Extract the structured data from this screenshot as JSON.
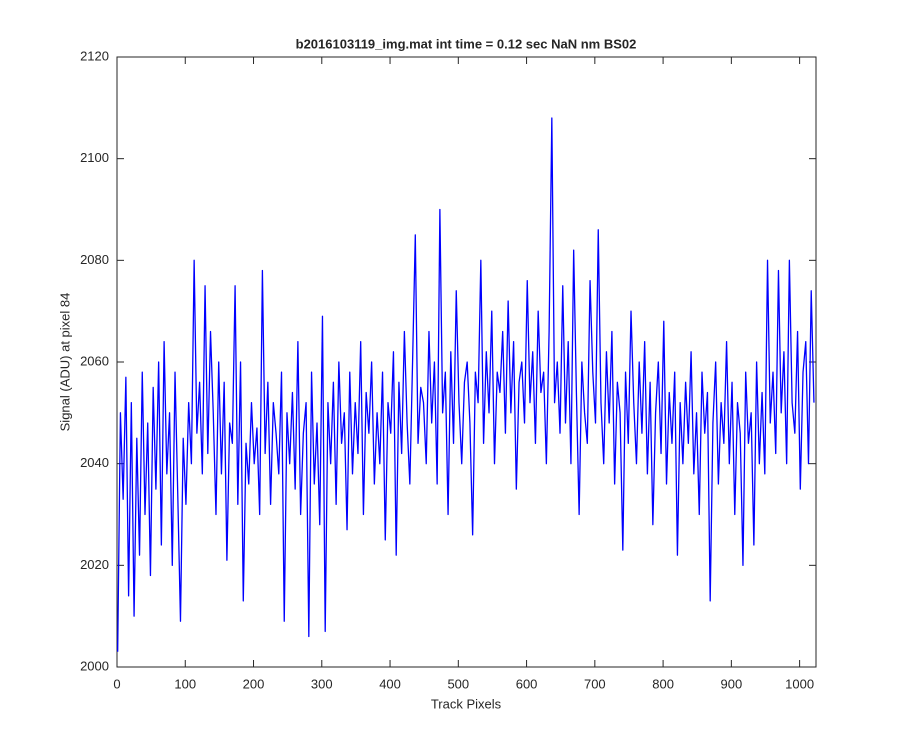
{
  "chart_data": {
    "type": "line",
    "title": "b2016103119_img.mat int time = 0.12 sec  NaN nm BS02",
    "x_label": "Track Pixels",
    "y_label": "Signal (ADU) at pixel 84",
    "xlim": [
      0,
      1024
    ],
    "ylim": [
      2000,
      2120
    ],
    "xticks": [
      0,
      100,
      200,
      300,
      400,
      500,
      600,
      700,
      800,
      900,
      1000
    ],
    "yticks": [
      2000,
      2020,
      2040,
      2060,
      2080,
      2100,
      2120
    ],
    "x": [
      1,
      5,
      9,
      13,
      17,
      21,
      25,
      29,
      33,
      37,
      41,
      45,
      49,
      53,
      57,
      61,
      65,
      69,
      73,
      77,
      81,
      85,
      89,
      93,
      97,
      101,
      105,
      109,
      113,
      117,
      121,
      125,
      129,
      133,
      137,
      141,
      145,
      149,
      153,
      157,
      161,
      165,
      169,
      173,
      177,
      181,
      185,
      189,
      193,
      197,
      201,
      205,
      209,
      213,
      217,
      221,
      225,
      229,
      233,
      237,
      241,
      245,
      249,
      253,
      257,
      261,
      265,
      269,
      273,
      277,
      281,
      285,
      289,
      293,
      297,
      301,
      305,
      309,
      313,
      317,
      321,
      325,
      329,
      333,
      337,
      341,
      345,
      349,
      353,
      357,
      361,
      365,
      369,
      373,
      377,
      381,
      385,
      389,
      393,
      397,
      401,
      405,
      409,
      413,
      417,
      421,
      425,
      429,
      433,
      437,
      441,
      445,
      449,
      453,
      457,
      461,
      465,
      469,
      473,
      477,
      481,
      485,
      489,
      493,
      497,
      501,
      505,
      509,
      513,
      517,
      521,
      525,
      529,
      533,
      537,
      541,
      545,
      549,
      553,
      557,
      561,
      565,
      569,
      573,
      577,
      581,
      585,
      589,
      593,
      597,
      601,
      605,
      609,
      613,
      617,
      621,
      625,
      629,
      633,
      637,
      641,
      645,
      649,
      653,
      657,
      661,
      665,
      669,
      673,
      677,
      681,
      685,
      689,
      693,
      697,
      701,
      705,
      709,
      713,
      717,
      721,
      725,
      729,
      733,
      737,
      741,
      745,
      749,
      753,
      757,
      761,
      765,
      769,
      773,
      777,
      781,
      785,
      789,
      793,
      797,
      801,
      805,
      809,
      813,
      817,
      821,
      825,
      829,
      833,
      837,
      841,
      845,
      849,
      853,
      857,
      861,
      865,
      869,
      873,
      877,
      881,
      885,
      889,
      893,
      897,
      901,
      905,
      909,
      913,
      917,
      921,
      925,
      929,
      933,
      937,
      941,
      945,
      949,
      953,
      957,
      961,
      965,
      969,
      973,
      977,
      981,
      985,
      989,
      993,
      997,
      1001,
      1005,
      1009,
      1013,
      1017,
      1021
    ],
    "series": [
      {
        "name": "signal",
        "color": "#0000ff",
        "values": [
          2003,
          2050,
          2033,
          2057,
          2014,
          2052,
          2010,
          2045,
          2022,
          2058,
          2030,
          2048,
          2018,
          2055,
          2035,
          2060,
          2024,
          2064,
          2038,
          2050,
          2020,
          2058,
          2034,
          2009,
          2045,
          2032,
          2052,
          2040,
          2080,
          2046,
          2056,
          2038,
          2075,
          2042,
          2066,
          2050,
          2030,
          2060,
          2038,
          2056,
          2021,
          2048,
          2044,
          2075,
          2032,
          2060,
          2013,
          2044,
          2036,
          2052,
          2040,
          2047,
          2030,
          2078,
          2042,
          2056,
          2032,
          2052,
          2046,
          2038,
          2058,
          2009,
          2050,
          2040,
          2054,
          2035,
          2064,
          2030,
          2046,
          2052,
          2006,
          2058,
          2036,
          2048,
          2028,
          2069,
          2007,
          2052,
          2040,
          2056,
          2032,
          2060,
          2044,
          2050,
          2027,
          2058,
          2038,
          2052,
          2042,
          2064,
          2030,
          2054,
          2046,
          2060,
          2036,
          2050,
          2040,
          2058,
          2025,
          2052,
          2046,
          2062,
          2022,
          2056,
          2042,
          2066,
          2048,
          2036,
          2060,
          2085,
          2044,
          2055,
          2052,
          2040,
          2066,
          2048,
          2060,
          2036,
          2090,
          2050,
          2058,
          2030,
          2062,
          2044,
          2074,
          2052,
          2040,
          2056,
          2060,
          2048,
          2026,
          2058,
          2052,
          2080,
          2044,
          2062,
          2050,
          2070,
          2040,
          2058,
          2054,
          2066,
          2046,
          2072,
          2050,
          2064,
          2035,
          2056,
          2060,
          2048,
          2076,
          2052,
          2062,
          2044,
          2070,
          2054,
          2058,
          2040,
          2066,
          2108,
          2052,
          2060,
          2046,
          2075,
          2048,
          2064,
          2040,
          2082,
          2054,
          2030,
          2060,
          2050,
          2044,
          2076,
          2058,
          2048,
          2086,
          2052,
          2040,
          2062,
          2048,
          2066,
          2036,
          2056,
          2050,
          2023,
          2058,
          2044,
          2070,
          2052,
          2040,
          2060,
          2046,
          2064,
          2038,
          2056,
          2028,
          2050,
          2060,
          2042,
          2068,
          2036,
          2054,
          2044,
          2058,
          2022,
          2052,
          2040,
          2056,
          2044,
          2062,
          2038,
          2050,
          2030,
          2058,
          2046,
          2054,
          2013,
          2048,
          2060,
          2036,
          2052,
          2044,
          2064,
          2040,
          2056,
          2030,
          2052,
          2046,
          2020,
          2058,
          2044,
          2050,
          2024,
          2060,
          2040,
          2054,
          2038,
          2080,
          2048,
          2058,
          2042,
          2078,
          2050,
          2062,
          2040,
          2080,
          2052,
          2046,
          2066,
          2035,
          2058,
          2064,
          2040,
          2074,
          2052
        ]
      }
    ]
  }
}
